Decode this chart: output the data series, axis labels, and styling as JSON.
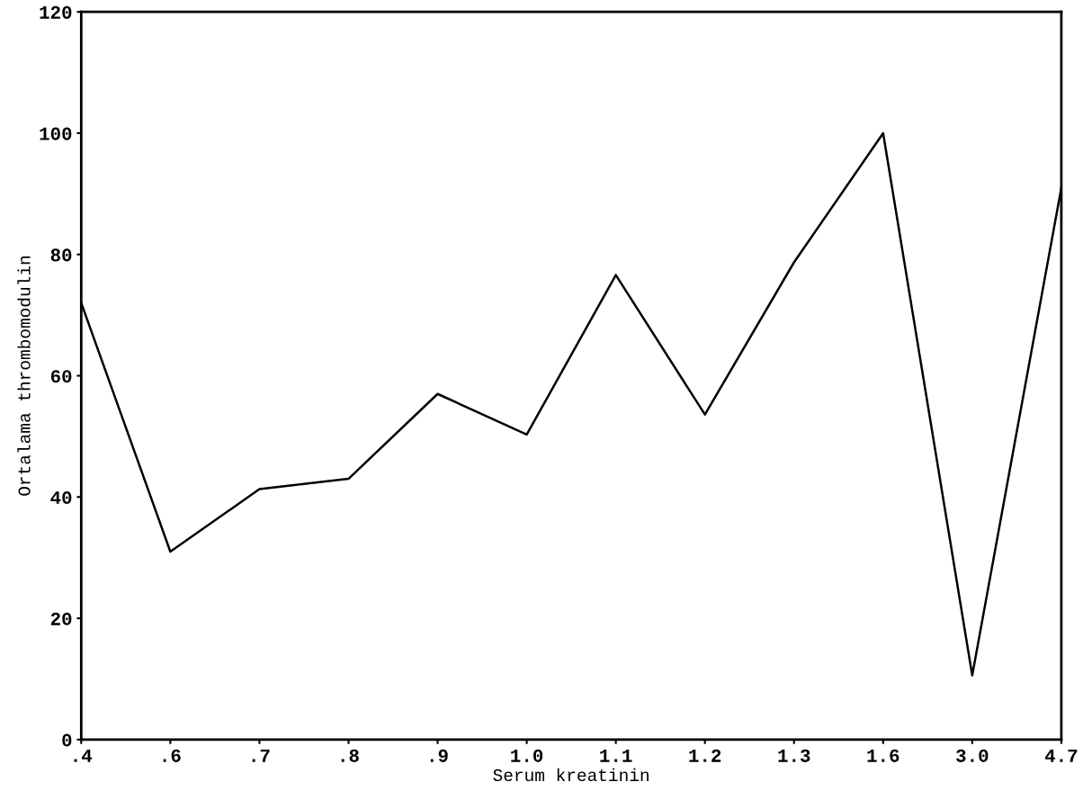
{
  "chart_data": {
    "type": "line",
    "xlabel": "Serum kreatinin",
    "ylabel": "Ortalama thrombomodulin",
    "categories": [
      ".4",
      ".6",
      ".7",
      ".8",
      ".9",
      "1.0",
      "1.1",
      "1.2",
      "1.3",
      "1.6",
      "3.0",
      "4.7"
    ],
    "series": [
      {
        "color": "#000000",
        "values": [
          72,
          31,
          41.3,
          43,
          57,
          50.3,
          76.6,
          53.6,
          78.7,
          100,
          10.6,
          91
        ]
      }
    ],
    "ylim": [
      0,
      120
    ],
    "yticks": [
      0,
      20,
      40,
      60,
      80,
      100,
      120
    ],
    "grid": false,
    "legend": false,
    "marker": "none",
    "line_style": "solid"
  }
}
